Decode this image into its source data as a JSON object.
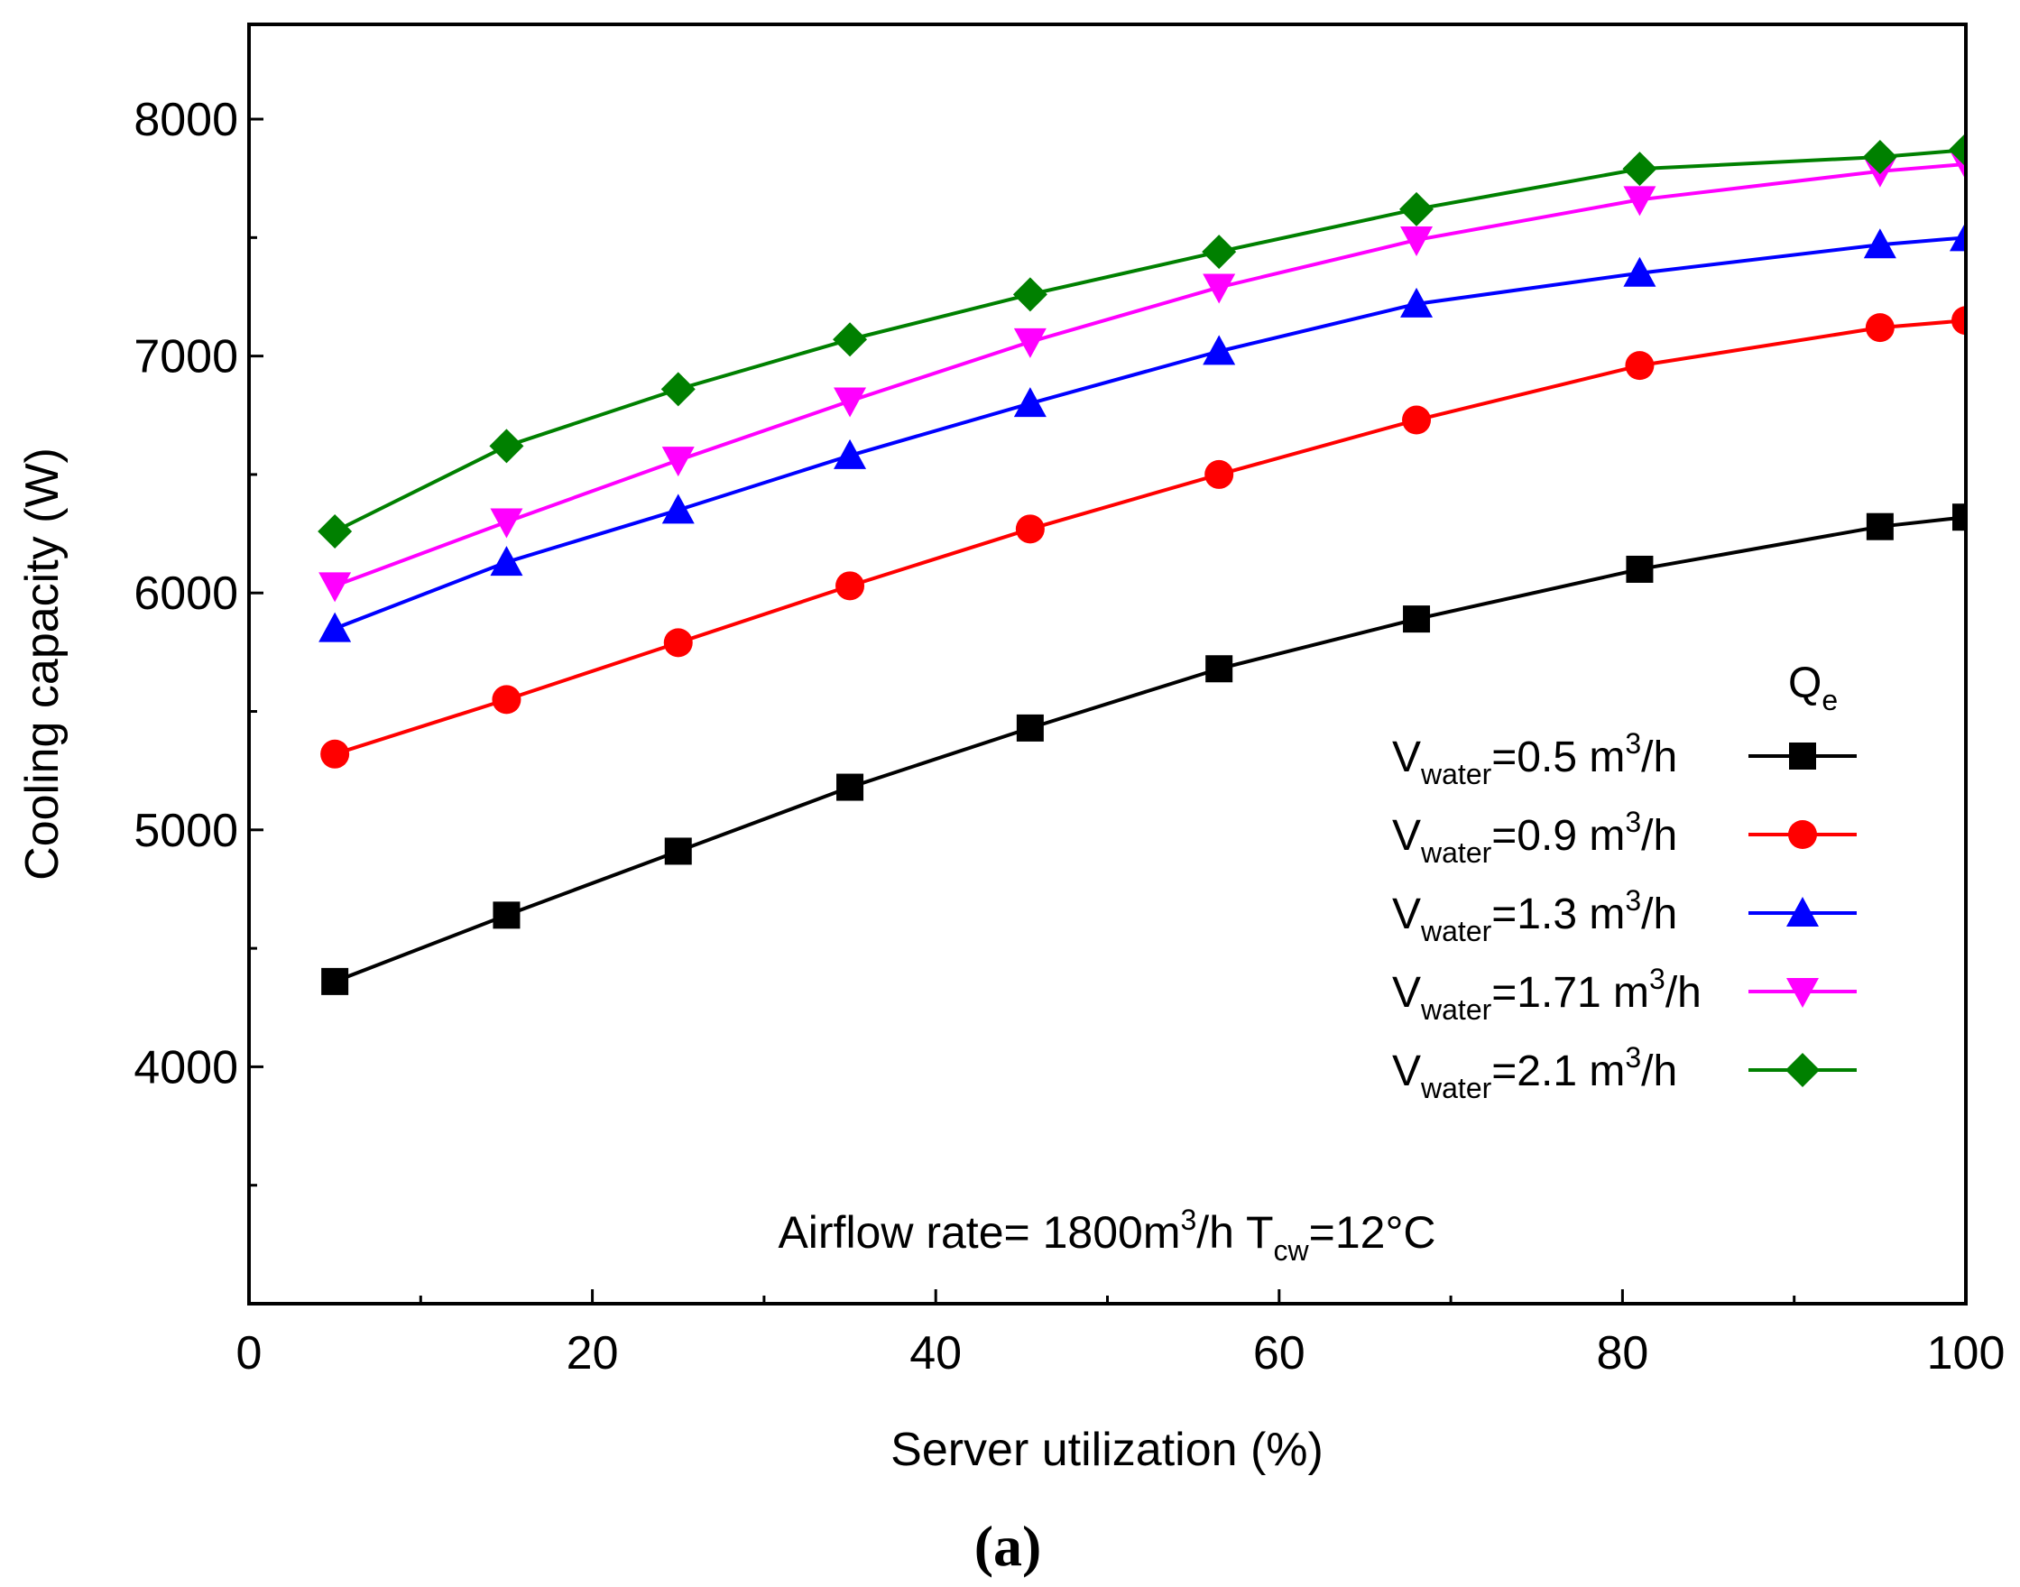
{
  "chart_data": {
    "type": "line",
    "xlabel": "Server utilization (%)",
    "ylabel": "Cooling capacity (W)",
    "xlim": [
      0,
      100
    ],
    "ylim": [
      3000,
      8400
    ],
    "xticks": [
      0,
      20,
      40,
      60,
      80,
      100
    ],
    "yticks": [
      4000,
      5000,
      6000,
      7000,
      8000
    ],
    "x": [
      5,
      15,
      25,
      35,
      45.5,
      56.5,
      68,
      81,
      95,
      100
    ],
    "series": [
      {
        "name": "V_water=0.5 m3/h",
        "base": "V",
        "sub": "water",
        "value": "=0.5 m",
        "sup": "3",
        "unit": "/h",
        "color": "#000000",
        "marker": "square",
        "values": [
          4360,
          4640,
          4910,
          5180,
          5430,
          5680,
          5890,
          6100,
          6280,
          6320
        ]
      },
      {
        "name": "V_water=0.9 m3/h",
        "base": "V",
        "sub": "water",
        "value": "=0.9 m",
        "sup": "3",
        "unit": "/h",
        "color": "#ff0000",
        "marker": "circle",
        "values": [
          5320,
          5550,
          5790,
          6030,
          6270,
          6500,
          6730,
          6960,
          7120,
          7150
        ]
      },
      {
        "name": "V_water=1.3 m3/h",
        "base": "V",
        "sub": "water",
        "value": "=1.3 m",
        "sup": "3",
        "unit": "/h",
        "color": "#0000ff",
        "marker": "triangle-up",
        "values": [
          5850,
          6130,
          6350,
          6580,
          6800,
          7020,
          7220,
          7350,
          7470,
          7500
        ]
      },
      {
        "name": "V_water=1.71 m3/h",
        "base": "V",
        "sub": "water",
        "value": "=1.71 m",
        "sup": "3",
        "unit": "/h",
        "color": "#ff00ff",
        "marker": "triangle-down",
        "values": [
          6030,
          6300,
          6560,
          6810,
          7060,
          7290,
          7490,
          7660,
          7780,
          7810
        ]
      },
      {
        "name": "V_water=2.1 m3/h",
        "base": "V",
        "sub": "water",
        "value": "=2.1 m",
        "sup": "3",
        "unit": "/h",
        "color": "#008000",
        "marker": "diamond",
        "values": [
          6260,
          6620,
          6860,
          7070,
          7260,
          7440,
          7620,
          7790,
          7840,
          7870
        ]
      }
    ],
    "legend": {
      "title_base": "Q",
      "title_sub": "e",
      "position": "right-middle"
    },
    "annotation": {
      "part1": "Airflow rate= 1800m",
      "sup": "3",
      "part2": "/h  T",
      "sub": "cw",
      "part3": "=12°C"
    },
    "panel_label": "(a)"
  }
}
